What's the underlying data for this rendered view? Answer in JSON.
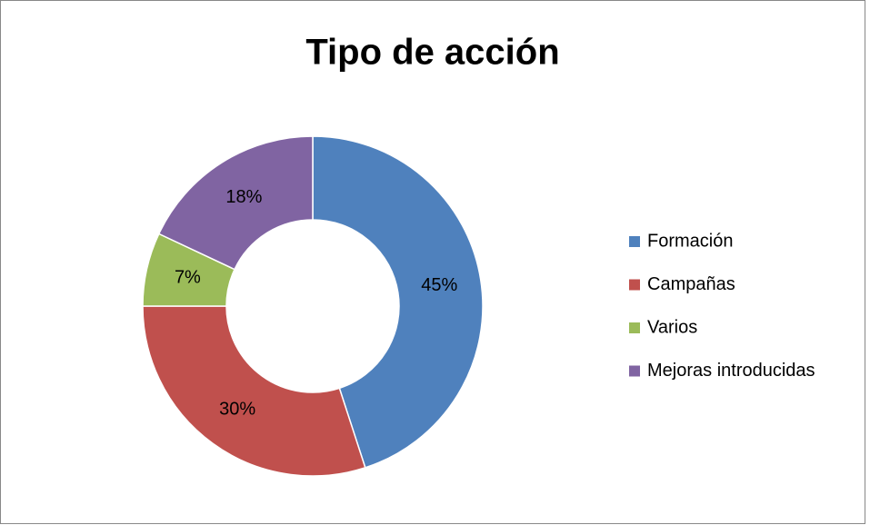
{
  "chart_data": {
    "type": "donut",
    "title": "Tipo de acción",
    "categories": [
      "Formación",
      "Campañas",
      "Varios",
      "Mejoras introducidas"
    ],
    "values": [
      45,
      30,
      7,
      18
    ],
    "value_labels": [
      "45%",
      "30%",
      "7%",
      "18%"
    ],
    "colors": [
      "#4f81bd",
      "#c0504d",
      "#9bbb59",
      "#8064a2"
    ],
    "legend": "right"
  }
}
